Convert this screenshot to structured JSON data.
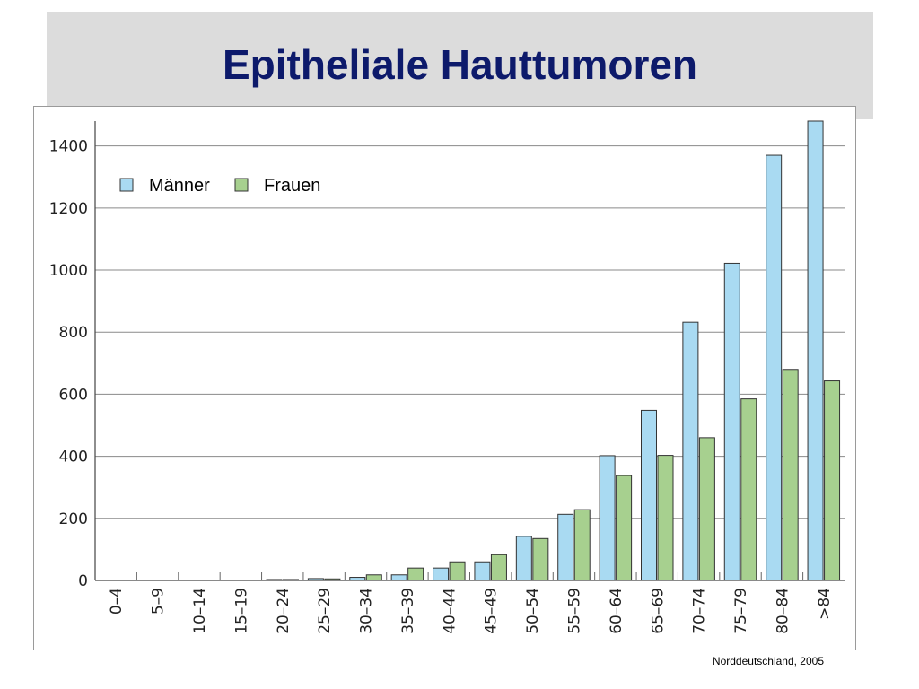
{
  "slide": {
    "title": "Epitheliale Hauttumoren",
    "source_note": "Norddeutschland, 2005"
  },
  "chart_data": {
    "type": "bar",
    "title": "",
    "xlabel": "",
    "ylabel": "",
    "ylim": [
      0,
      1480
    ],
    "yticks": [
      0,
      200,
      400,
      600,
      800,
      1000,
      1200,
      1400
    ],
    "grid": true,
    "legend_position": "top-left",
    "categories": [
      "0–4",
      "5–9",
      "10–14",
      "15–19",
      "20–24",
      "25–29",
      "30–34",
      "35–39",
      "40–44",
      "45–49",
      "50–54",
      "55–59",
      "60–64",
      "65–69",
      "70–74",
      "75–79",
      "80–84",
      ">84"
    ],
    "series": [
      {
        "name": "Männer",
        "color": "#a9daf2",
        "values": [
          0,
          0,
          0,
          0,
          3,
          6,
          10,
          18,
          40,
          60,
          142,
          213,
          402,
          548,
          832,
          1022,
          1370,
          1480
        ]
      },
      {
        "name": "Frauen",
        "color": "#a7d08f",
        "values": [
          0,
          0,
          0,
          0,
          3,
          5,
          18,
          40,
          60,
          83,
          135,
          228,
          338,
          403,
          460,
          585,
          680,
          643
        ]
      }
    ]
  }
}
